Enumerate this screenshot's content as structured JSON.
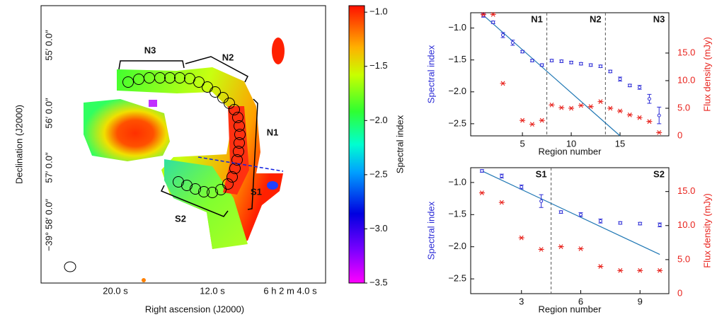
{
  "map": {
    "xlabel": "Right ascension (J2000)",
    "ylabel": "Declination (J2000)",
    "xticks": [
      "20.0 s",
      "12.0 s",
      "6 h 2 m 4.0 s"
    ],
    "yticks": [
      "55′ 0.0″",
      "56′ 0.0″",
      "57′ 0.0″",
      "−39° 58′ 0.0″"
    ],
    "regions": [
      "N3",
      "N2",
      "N1",
      "S1",
      "S2"
    ],
    "colorbar": {
      "label": "Spectral index",
      "lim": [
        -3.5,
        -0.94
      ],
      "ticks": [
        {
          "value": -1,
          "label": "−1.0"
        },
        {
          "value": -1.5,
          "label": "−1.5"
        },
        {
          "value": -2,
          "label": "−2.0"
        },
        {
          "value": -2.5,
          "label": "−2.5"
        },
        {
          "value": -3,
          "label": "−3.0"
        },
        {
          "value": -3.5,
          "label": "−3.5"
        }
      ]
    }
  },
  "chart_data": [
    {
      "type": "scatter",
      "xlabel": "Region number",
      "ylabel": "Spectral index",
      "y2label": "Flux density (mJy)",
      "x": [
        1,
        2,
        3,
        4,
        5,
        6,
        7,
        8,
        9,
        10,
        11,
        12,
        13,
        14,
        15,
        16,
        17,
        18,
        19
      ],
      "xlim": [
        -0.3,
        20
      ],
      "xticks": [
        5,
        10,
        15
      ],
      "ylim": [
        -2.69,
        -0.76
      ],
      "yticks": [
        {
          "value": -1,
          "label": "−1.0"
        },
        {
          "value": -1.5,
          "label": "−1.5"
        },
        {
          "value": -2,
          "label": "−2.0"
        },
        {
          "value": -2.5,
          "label": "−2.5"
        }
      ],
      "y2lim": [
        0,
        22.3
      ],
      "y2ticks": [
        0,
        {
          "value": 5,
          "label": "5.0"
        },
        {
          "value": 10,
          "label": "10.0"
        },
        {
          "value": 15,
          "label": "15.0"
        }
      ],
      "series": [
        {
          "color": "#2b2bd6",
          "values": [
            -0.8,
            -0.91,
            -1.11,
            -1.23,
            -1.37,
            -1.51,
            -1.58,
            -1.51,
            -1.52,
            -1.54,
            -1.56,
            -1.58,
            -1.6,
            -1.68,
            -1.8,
            -1.9,
            -1.93,
            -2.11,
            -2.37
          ],
          "errors": [
            0.03,
            0.02,
            0.04,
            0.04,
            0.02,
            0.02,
            0.02,
            0.02,
            0.02,
            0.02,
            0.02,
            0.02,
            0.02,
            0.02,
            0.03,
            0.02,
            0.03,
            0.07,
            0.13
          ]
        },
        {
          "color": "#e8211b",
          "axis": "y2",
          "values": [
            22.0,
            22.0,
            9.5,
            null,
            2.8,
            2.1,
            2.8,
            5.6,
            5.1,
            5.0,
            5.5,
            5.3,
            6.2,
            5.0,
            4.5,
            3.8,
            3.3,
            2.6,
            0.6
          ]
        }
      ],
      "fit": {
        "color": "#1f77b4",
        "x": [
          1,
          15
        ],
        "values": [
          -0.8,
          -2.69
        ]
      },
      "dividers": [
        7.5,
        13.5
      ],
      "sections": [
        "N1",
        "N2",
        "N3"
      ]
    },
    {
      "type": "scatter",
      "xlabel": "Region number",
      "ylabel": "Spectral index",
      "y2label": "Flux density (mJy)",
      "x": [
        1,
        2,
        3,
        4,
        5,
        6,
        7,
        8,
        9,
        10
      ],
      "xlim": [
        0.43,
        10.46
      ],
      "xticks": [
        3,
        6,
        9
      ],
      "ylim": [
        -2.73,
        -0.77
      ],
      "yticks": [
        {
          "value": -1,
          "label": "−1.0"
        },
        {
          "value": -1.5,
          "label": "−1.5"
        },
        {
          "value": -2,
          "label": "−2.0"
        },
        {
          "value": -2.5,
          "label": "−2.5"
        }
      ],
      "y2lim": [
        0,
        18.5
      ],
      "y2ticks": [
        0,
        {
          "value": 5,
          "label": "5.0"
        },
        {
          "value": 10,
          "label": "10.0"
        },
        {
          "value": 15,
          "label": "15.0"
        }
      ],
      "series": [
        {
          "color": "#2b2bd6",
          "values": [
            -0.82,
            -0.9,
            -1.07,
            -1.29,
            -1.46,
            -1.5,
            -1.6,
            -1.63,
            -1.64,
            -1.66
          ],
          "errors": [
            0.02,
            0.03,
            0.03,
            0.1,
            0.02,
            0.03,
            0.03,
            0.02,
            0.02,
            0.03
          ]
        },
        {
          "color": "#e8211b",
          "axis": "y2",
          "values": [
            14.8,
            13.4,
            8.2,
            6.5,
            6.9,
            6.6,
            4.0,
            3.4,
            3.4,
            3.4
          ]
        }
      ],
      "fit": {
        "color": "#1f77b4",
        "x": [
          1,
          10
        ],
        "values": [
          -0.82,
          -2.12
        ]
      },
      "dividers": [
        4.5
      ],
      "sections": [
        "S1",
        "S2"
      ]
    }
  ]
}
